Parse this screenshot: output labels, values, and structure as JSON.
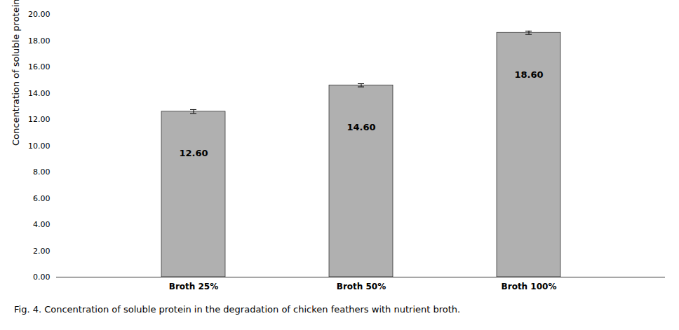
{
  "chart_data": {
    "type": "bar",
    "categories": [
      "Broth 25%",
      "Broth 50%",
      "Broth 100%"
    ],
    "values": [
      12.6,
      14.6,
      18.6
    ],
    "errors": [
      0.15,
      0.12,
      0.13
    ],
    "value_labels": [
      "12.60",
      "14.60",
      "18.60"
    ],
    "data_labels": true,
    "color": "#b0b0b0",
    "ylabel": "Concentration of soluble protein  (μg/mL)",
    "ylim": [
      0,
      20.0
    ],
    "yticks": [
      {
        "value": 0,
        "label": "0.00"
      },
      {
        "value": 2,
        "label": "2.00"
      },
      {
        "value": 4,
        "label": "4.00"
      },
      {
        "value": 6,
        "label": "6.00"
      },
      {
        "value": 8,
        "label": "8.00"
      },
      {
        "value": 10,
        "label": "10.00"
      },
      {
        "value": 12,
        "label": "12.00"
      },
      {
        "value": 14,
        "label": "14.00"
      },
      {
        "value": 16,
        "label": "16.00"
      },
      {
        "value": 18,
        "label": "18.00"
      },
      {
        "value": 20,
        "label": "20.00"
      }
    ],
    "caption": "Fig. 4. Concentration of soluble protein in the degradation of chicken feathers with nutrient broth.",
    "grid": false
  }
}
